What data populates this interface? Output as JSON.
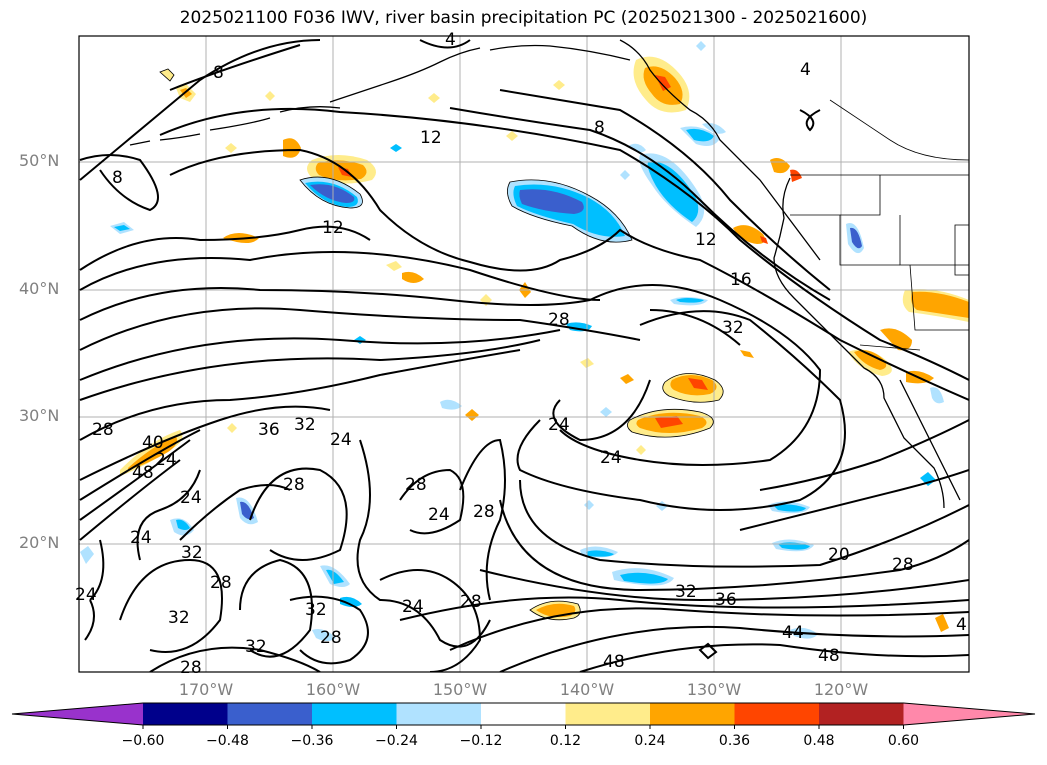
{
  "title": "2025021100 F036 IWV, river basin precipitation PC (2025021300 - 2025021600)",
  "lat_labels": [
    "50°N",
    "40°N",
    "30°N",
    "20°N"
  ],
  "lon_labels": [
    "170°W",
    "160°W",
    "150°W",
    "140°W",
    "130°W",
    "120°W"
  ],
  "contour_labels": [
    {
      "text": "4"
    },
    {
      "text": "8"
    },
    {
      "text": "8"
    },
    {
      "text": "12"
    },
    {
      "text": "12"
    },
    {
      "text": "8"
    },
    {
      "text": "4"
    },
    {
      "text": "12"
    },
    {
      "text": "16"
    },
    {
      "text": "28"
    },
    {
      "text": "32"
    },
    {
      "text": "24"
    },
    {
      "text": "24"
    },
    {
      "text": "28"
    },
    {
      "text": "40"
    },
    {
      "text": "48"
    },
    {
      "text": "24"
    },
    {
      "text": "36"
    },
    {
      "text": "32"
    },
    {
      "text": "24"
    },
    {
      "text": "28"
    },
    {
      "text": "24"
    },
    {
      "text": "28"
    },
    {
      "text": "24"
    },
    {
      "text": "28"
    },
    {
      "text": "24"
    },
    {
      "text": "32"
    },
    {
      "text": "28"
    },
    {
      "text": "32"
    },
    {
      "text": "32"
    },
    {
      "text": "28"
    },
    {
      "text": "32"
    },
    {
      "text": "24"
    },
    {
      "text": "28"
    },
    {
      "text": "28"
    },
    {
      "text": "32"
    },
    {
      "text": "36"
    },
    {
      "text": "20"
    },
    {
      "text": "28"
    },
    {
      "text": "44"
    },
    {
      "text": "48"
    },
    {
      "text": "48"
    },
    {
      "text": "4"
    },
    {
      "text": "24"
    }
  ],
  "colorbar": {
    "ticks": [
      "−0.60",
      "−0.48",
      "−0.36",
      "−0.24",
      "−0.12",
      "0.12",
      "0.24",
      "0.36",
      "0.48",
      "0.60"
    ],
    "colors": [
      "#9932cc",
      "#00008b",
      "#3a5fcd",
      "#00bfff",
      "#b0e2ff",
      "#ffffff",
      "#ffec8b",
      "#ffa500",
      "#ff4500",
      "#b22222",
      "#ff88aa"
    ]
  }
}
